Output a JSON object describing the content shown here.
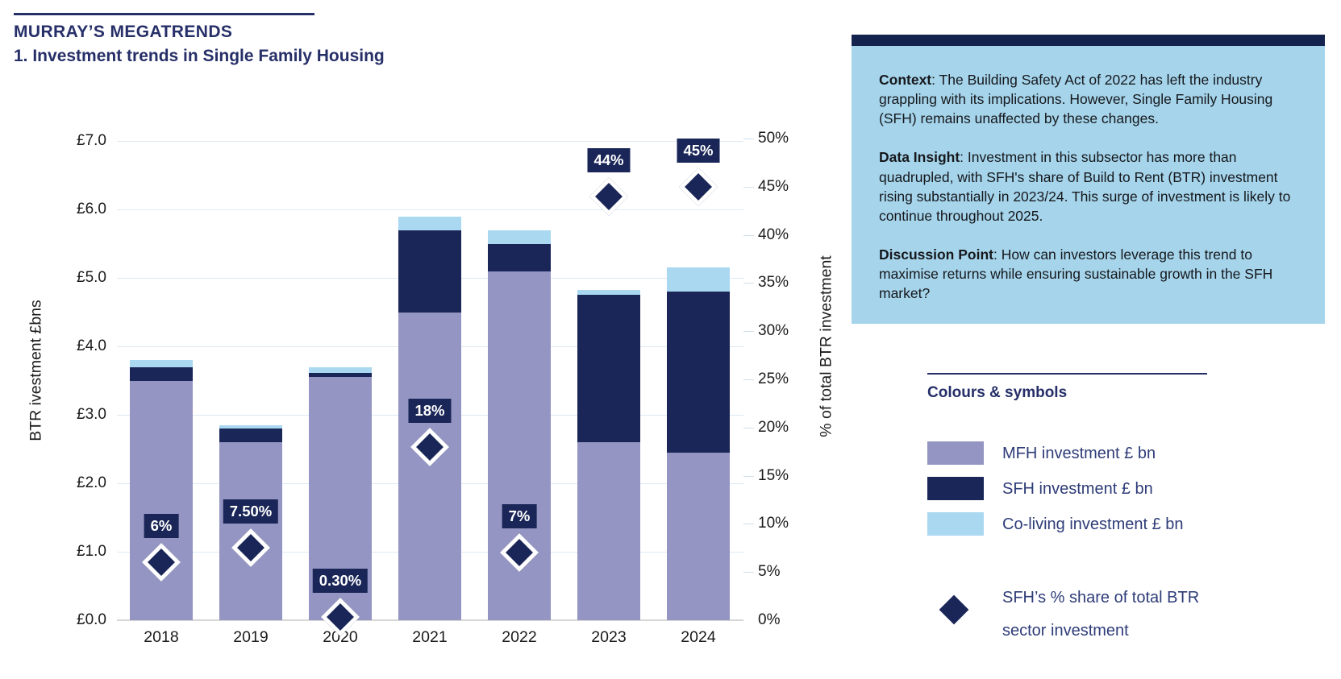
{
  "header": {
    "kicker": "MURRAY’S MEGATRENDS",
    "title": "1. Investment trends in Single Family Housing"
  },
  "chart_data": {
    "type": "stacked-bar-with-scatter-markers",
    "categories": [
      "2018",
      "2019",
      "2020",
      "2021",
      "2022",
      "2023",
      "2024"
    ],
    "series": [
      {
        "name": "MFH investment £ bn",
        "color": "#9495c2",
        "values": [
          3.5,
          2.6,
          3.55,
          4.5,
          5.1,
          2.6,
          2.45
        ]
      },
      {
        "name": "SFH investment £ bn",
        "color": "#1a2657",
        "values": [
          0.2,
          0.2,
          0.06,
          1.2,
          0.4,
          2.15,
          2.35
        ]
      },
      {
        "name": "Co-living investment £ bn",
        "color": "#a9d8f0",
        "values": [
          0.1,
          0.05,
          0.09,
          0.2,
          0.2,
          0.07,
          0.35
        ]
      }
    ],
    "marker_series": {
      "name": "SFH’s % share of total BTR sector investment",
      "name_lines": [
        "SFH’s % share of total BTR",
        "sector investment"
      ],
      "color": "#1a2657",
      "values_pct": [
        6,
        7.5,
        0.3,
        18,
        7,
        44,
        45
      ],
      "labels": [
        "6%",
        "7.50%",
        "0.30%",
        "18%",
        "7%",
        "44%",
        "45%"
      ]
    },
    "axes": {
      "left": {
        "label": "BTR ivestment £bns",
        "min": 0,
        "max": 7,
        "step": 1,
        "ticks": [
          "£0.0",
          "£1.0",
          "£2.0",
          "£3.0",
          "£4.0",
          "£5.0",
          "£6.0",
          "£7.0"
        ]
      },
      "right": {
        "label": "% of total BTR investment",
        "min": 0,
        "max": 50,
        "step": 5,
        "ticks": [
          "0%",
          "5%",
          "10%",
          "15%",
          "20%",
          "25%",
          "30%",
          "35%",
          "40%",
          "45%",
          "50%"
        ]
      }
    },
    "grid": "horizontal",
    "marker_label_style": {
      "background": "#1a2657",
      "text": "#ffffff"
    }
  },
  "infobox": {
    "accent_color": "#14224e",
    "background_color": "#a5d4eb",
    "items": [
      {
        "lead": "Context",
        "text": ": The Building Safety Act of 2022 has left the industry grappling with its implications. However, Single Family Housing (SFH) remains unaffected by these changes."
      },
      {
        "lead": "Data Insight",
        "text": ": Investment in this subsector has more than quadrupled, with SFH's share of Build to Rent (BTR) investment rising substantially in 2023/24. This surge of investment is likely to continue throughout 2025."
      },
      {
        "lead": "Discussion Point",
        "text": ": How can investors leverage this trend to maximise returns while ensuring sustainable growth in the SFH market?"
      }
    ]
  },
  "legend": {
    "heading": "Colours & symbols"
  }
}
